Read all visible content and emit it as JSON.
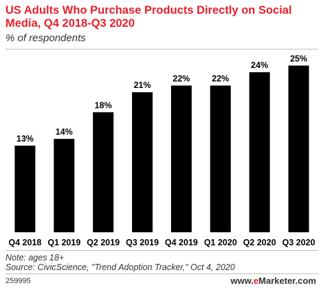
{
  "chart_data": {
    "type": "bar",
    "title": "US Adults Who Purchase Products Directly on Social Media, Q4 2018-Q3 2020",
    "subtitle": "% of respondents",
    "categories": [
      "Q4 2018",
      "Q1 2019",
      "Q2 2019",
      "Q3 2019",
      "Q4 2019",
      "Q1 2020",
      "Q2 2020",
      "Q3 2020"
    ],
    "values": [
      13,
      14,
      18,
      21,
      22,
      22,
      24,
      25
    ],
    "value_labels": [
      "13%",
      "14%",
      "18%",
      "21%",
      "22%",
      "22%",
      "24%",
      "25%"
    ],
    "ylim": [
      0,
      27
    ],
    "grid": false,
    "bar_color": "#000000"
  },
  "footer": {
    "note": "Note: ages 18+",
    "source": "Source: CivicScience, \"Trend Adoption Tracker,\" Oct 4, 2020",
    "chart_id": "259995",
    "brand_prefix": "www.",
    "brand_e": "e",
    "brand_rest": "Marketer.com"
  },
  "colors": {
    "title": "#e8202b",
    "bars": "#000000",
    "brand_accent": "#e8202b"
  }
}
